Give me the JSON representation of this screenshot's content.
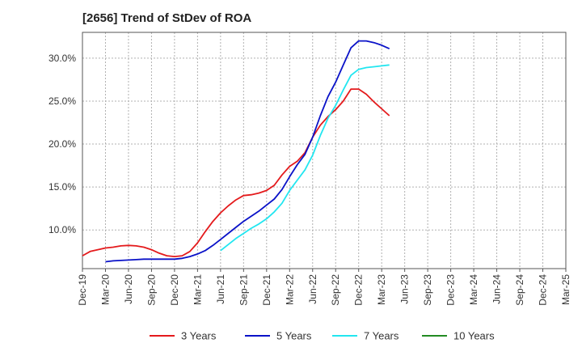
{
  "chart_data": {
    "type": "line",
    "title": "[2656]  Trend of StDev of ROA",
    "xlabel": "",
    "ylabel": "",
    "ylim": [
      5.5,
      33
    ],
    "yticks": [
      10,
      15,
      20,
      25,
      30
    ],
    "ytick_labels": [
      "10.0%",
      "15.0%",
      "20.0%",
      "25.0%",
      "30.0%"
    ],
    "xticks": [
      "Dec-19",
      "Mar-20",
      "Jun-20",
      "Sep-20",
      "Dec-20",
      "Mar-21",
      "Jun-21",
      "Sep-21",
      "Dec-21",
      "Mar-22",
      "Jun-22",
      "Sep-22",
      "Dec-22",
      "Mar-23",
      "Jun-23",
      "Sep-23",
      "Dec-23",
      "Mar-24",
      "Jun-24",
      "Sep-24",
      "Dec-24",
      "Mar-25"
    ],
    "grid": true,
    "legend_position": "bottom",
    "series": [
      {
        "name": "3 Years",
        "color": "#e41a1c",
        "points": [
          [
            0,
            7.0
          ],
          [
            1,
            7.5
          ],
          [
            2,
            7.7
          ],
          [
            3,
            7.9
          ],
          [
            4,
            8.0
          ],
          [
            5,
            8.15
          ],
          [
            6,
            8.2
          ],
          [
            7,
            8.15
          ],
          [
            8,
            8.0
          ],
          [
            9,
            7.7
          ],
          [
            10,
            7.3
          ],
          [
            11,
            7.0
          ],
          [
            12,
            6.9
          ],
          [
            13,
            7.0
          ],
          [
            14,
            7.5
          ],
          [
            15,
            8.5
          ],
          [
            16,
            9.8
          ],
          [
            17,
            11.0
          ],
          [
            18,
            12.0
          ],
          [
            19,
            12.8
          ],
          [
            20,
            13.5
          ],
          [
            21,
            14.0
          ],
          [
            22,
            14.1
          ],
          [
            23,
            14.3
          ],
          [
            24,
            14.6
          ],
          [
            25,
            15.2
          ],
          [
            26,
            16.4
          ],
          [
            27,
            17.4
          ],
          [
            28,
            18.0
          ],
          [
            29,
            19.0
          ],
          [
            30,
            20.8
          ],
          [
            31,
            22.2
          ],
          [
            32,
            23.2
          ],
          [
            33,
            24.0
          ],
          [
            34,
            25.0
          ],
          [
            35,
            26.4
          ],
          [
            36,
            26.4
          ],
          [
            37,
            25.8
          ],
          [
            38,
            24.9
          ],
          [
            39,
            24.1
          ],
          [
            40,
            23.3
          ]
        ]
      },
      {
        "name": "5 Years",
        "color": "#0a12c8",
        "points": [
          [
            3,
            6.3
          ],
          [
            4,
            6.4
          ],
          [
            5,
            6.45
          ],
          [
            6,
            6.5
          ],
          [
            7,
            6.55
          ],
          [
            8,
            6.6
          ],
          [
            9,
            6.6
          ],
          [
            10,
            6.6
          ],
          [
            11,
            6.6
          ],
          [
            12,
            6.6
          ],
          [
            13,
            6.7
          ],
          [
            14,
            6.9
          ],
          [
            15,
            7.2
          ],
          [
            16,
            7.6
          ],
          [
            17,
            8.2
          ],
          [
            18,
            8.9
          ],
          [
            19,
            9.6
          ],
          [
            20,
            10.3
          ],
          [
            21,
            11.0
          ],
          [
            22,
            11.6
          ],
          [
            23,
            12.2
          ],
          [
            24,
            12.9
          ],
          [
            25,
            13.6
          ],
          [
            26,
            14.7
          ],
          [
            27,
            16.2
          ],
          [
            28,
            17.6
          ],
          [
            29,
            18.8
          ],
          [
            30,
            20.8
          ],
          [
            31,
            23.3
          ],
          [
            32,
            25.5
          ],
          [
            33,
            27.2
          ],
          [
            34,
            29.2
          ],
          [
            35,
            31.2
          ],
          [
            36,
            32.0
          ],
          [
            37,
            32.0
          ],
          [
            38,
            31.8
          ],
          [
            39,
            31.5
          ],
          [
            40,
            31.1
          ]
        ]
      },
      {
        "name": "7 Years",
        "color": "#22e6f0",
        "points": [
          [
            18,
            7.6
          ],
          [
            19,
            8.3
          ],
          [
            20,
            9.0
          ],
          [
            21,
            9.6
          ],
          [
            22,
            10.2
          ],
          [
            23,
            10.7
          ],
          [
            24,
            11.3
          ],
          [
            25,
            12.1
          ],
          [
            26,
            13.1
          ],
          [
            27,
            14.6
          ],
          [
            28,
            15.8
          ],
          [
            29,
            17.0
          ],
          [
            30,
            18.7
          ],
          [
            31,
            21.0
          ],
          [
            32,
            23.0
          ],
          [
            33,
            24.5
          ],
          [
            34,
            26.3
          ],
          [
            35,
            28.0
          ],
          [
            36,
            28.7
          ],
          [
            37,
            28.9
          ],
          [
            38,
            29.0
          ],
          [
            39,
            29.1
          ],
          [
            40,
            29.2
          ]
        ]
      },
      {
        "name": "10 Years",
        "color": "#228b22",
        "points": []
      }
    ]
  }
}
